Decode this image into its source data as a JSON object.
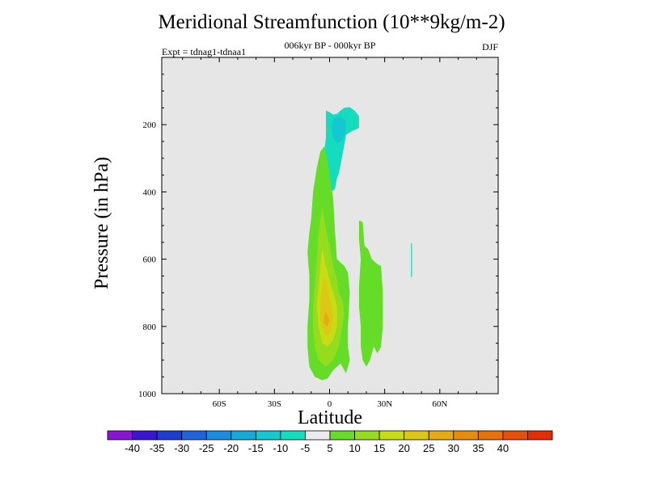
{
  "chart_data": {
    "type": "filled-contour",
    "title": "Meridional Streamfunction (10**9kg/m-2)",
    "subtitle": "006kyr BP - 000kyr BP",
    "left_string": "Expt = tdnag1-tdnaa1",
    "right_string": "DJF",
    "xlabel": "Latitude",
    "ylabel": "Pressure (in hPa)",
    "xlim": [
      -90,
      90
    ],
    "ylim": [
      1000,
      0
    ],
    "x_ticks": [
      {
        "value": -60,
        "label": "60S"
      },
      {
        "value": -30,
        "label": "30S"
      },
      {
        "value": 0,
        "label": "0"
      },
      {
        "value": 30,
        "label": "30N"
      },
      {
        "value": 60,
        "label": "60N"
      }
    ],
    "y_ticks": [
      {
        "value": 200,
        "label": "200"
      },
      {
        "value": 400,
        "label": "400"
      },
      {
        "value": 600,
        "label": "600"
      },
      {
        "value": 800,
        "label": "800"
      },
      {
        "value": 1000,
        "label": "1000"
      }
    ],
    "missing_color": "#e6e6e6",
    "colorbar": {
      "colors": [
        "#8a14d6",
        "#3c14d6",
        "#1e3cd2",
        "#1e64dc",
        "#1e8cdc",
        "#14aadc",
        "#14c8d2",
        "#14dcbe",
        "#ebebeb",
        "#64dc28",
        "#96dc1e",
        "#c8dc14",
        "#dcc814",
        "#e6aa14",
        "#e68c0a",
        "#e6700a",
        "#e6500a",
        "#e62d00"
      ],
      "labels": [
        "-40",
        "-35",
        "-30",
        "-25",
        "-20",
        "-15",
        "-10",
        "-5",
        "5",
        "10",
        "15",
        "20",
        "25",
        "30",
        "35",
        "40"
      ]
    },
    "regions": [
      {
        "name": "upper-negative-cell",
        "color": "#14dcbe",
        "outline": [
          [
            -2,
            158
          ],
          [
            0,
            163
          ],
          [
            2,
            170
          ],
          [
            4,
            168
          ],
          [
            6,
            158
          ],
          [
            8,
            150
          ],
          [
            11,
            148
          ],
          [
            14,
            160
          ],
          [
            16,
            175
          ],
          [
            16,
            210
          ],
          [
            12,
            220
          ],
          [
            9,
            230
          ],
          [
            8,
            260
          ],
          [
            7,
            290
          ],
          [
            6,
            320
          ],
          [
            5,
            345
          ],
          [
            4,
            360
          ],
          [
            3,
            390
          ],
          [
            2,
            396
          ],
          [
            -2,
            396
          ],
          [
            -3,
            380
          ],
          [
            -4,
            360
          ],
          [
            -4,
            320
          ],
          [
            -3,
            280
          ],
          [
            -2,
            240
          ],
          [
            -2,
            200
          ]
        ]
      },
      {
        "name": "upper-negative-core",
        "color": "#14c8d2",
        "outline": [
          [
            2,
            180
          ],
          [
            6,
            175
          ],
          [
            9,
            190
          ],
          [
            9,
            220
          ],
          [
            7,
            245
          ],
          [
            4,
            255
          ],
          [
            2,
            240
          ],
          [
            1,
            210
          ]
        ]
      },
      {
        "name": "lower-positive-cell",
        "color": "#64dc28",
        "outline": [
          [
            -3,
            265
          ],
          [
            -1,
            310
          ],
          [
            2,
            420
          ],
          [
            3,
            520
          ],
          [
            4,
            600
          ],
          [
            8,
            620
          ],
          [
            10,
            640
          ],
          [
            11,
            700
          ],
          [
            10,
            800
          ],
          [
            10,
            860
          ],
          [
            11,
            900
          ],
          [
            9,
            940
          ],
          [
            6,
            910
          ],
          [
            2,
            930
          ],
          [
            -1,
            955
          ],
          [
            -4,
            960
          ],
          [
            -8,
            950
          ],
          [
            -11,
            920
          ],
          [
            -12,
            860
          ],
          [
            -12,
            800
          ],
          [
            -11,
            720
          ],
          [
            -11,
            650
          ],
          [
            -12,
            580
          ],
          [
            -11,
            520
          ],
          [
            -10,
            480
          ],
          [
            -9,
            400
          ],
          [
            -7,
            330
          ],
          [
            -5,
            280
          ]
        ]
      },
      {
        "name": "lower-positive-10",
        "color": "#96dc1e",
        "outline": [
          [
            -4,
            445
          ],
          [
            -2,
            510
          ],
          [
            0,
            560
          ],
          [
            2,
            620
          ],
          [
            4,
            660
          ],
          [
            5,
            700
          ],
          [
            7,
            720
          ],
          [
            8,
            760
          ],
          [
            7,
            800
          ],
          [
            5,
            860
          ],
          [
            2,
            900
          ],
          [
            -2,
            920
          ],
          [
            -6,
            900
          ],
          [
            -8,
            860
          ],
          [
            -9,
            800
          ],
          [
            -9,
            740
          ],
          [
            -8,
            680
          ],
          [
            -7,
            600
          ],
          [
            -6,
            520
          ]
        ]
      },
      {
        "name": "lower-positive-15",
        "color": "#c8dc14",
        "outline": [
          [
            -4,
            570
          ],
          [
            -2,
            620
          ],
          [
            0,
            660
          ],
          [
            2,
            700
          ],
          [
            4,
            740
          ],
          [
            4,
            800
          ],
          [
            2,
            840
          ],
          [
            -1,
            860
          ],
          [
            -4,
            850
          ],
          [
            -6,
            800
          ],
          [
            -7,
            740
          ],
          [
            -6,
            680
          ],
          [
            -5,
            620
          ]
        ]
      },
      {
        "name": "lower-positive-20",
        "color": "#dcc814",
        "outline": [
          [
            -3,
            650
          ],
          [
            -1,
            690
          ],
          [
            1,
            730
          ],
          [
            2,
            770
          ],
          [
            1,
            810
          ],
          [
            -1,
            830
          ],
          [
            -3,
            820
          ],
          [
            -5,
            780
          ],
          [
            -5,
            720
          ],
          [
            -4,
            680
          ]
        ]
      },
      {
        "name": "lower-positive-25",
        "color": "#e6aa14",
        "outline": [
          [
            -2,
            755
          ],
          [
            0,
            780
          ],
          [
            -1,
            800
          ],
          [
            -3,
            790
          ],
          [
            -3,
            770
          ]
        ]
      },
      {
        "name": "secondary-positive-cell",
        "color": "#64dc28",
        "outline": [
          [
            16,
            485
          ],
          [
            18,
            490
          ],
          [
            19,
            560
          ],
          [
            21,
            570
          ],
          [
            23,
            600
          ],
          [
            26,
            615
          ],
          [
            28,
            620
          ],
          [
            29,
            700
          ],
          [
            29,
            800
          ],
          [
            28,
            860
          ],
          [
            26,
            880
          ],
          [
            24,
            860
          ],
          [
            22,
            900
          ],
          [
            20,
            920
          ],
          [
            18,
            900
          ],
          [
            17,
            860
          ],
          [
            17,
            800
          ],
          [
            16,
            740
          ],
          [
            16,
            680
          ],
          [
            17,
            600
          ],
          [
            16,
            540
          ]
        ]
      },
      {
        "name": "small-positive-strip",
        "color": "#64dc28",
        "outline": [
          [
            -1.3,
            208
          ],
          [
            -0.6,
            208
          ],
          [
            -0.6,
            216
          ],
          [
            -1.3,
            216
          ]
        ]
      },
      {
        "name": "high-latitude-negative-strip",
        "color": "#14dcbe",
        "outline": [
          [
            44.3,
            553
          ],
          [
            44.9,
            553
          ],
          [
            44.9,
            653
          ],
          [
            44.3,
            653
          ]
        ]
      }
    ]
  }
}
